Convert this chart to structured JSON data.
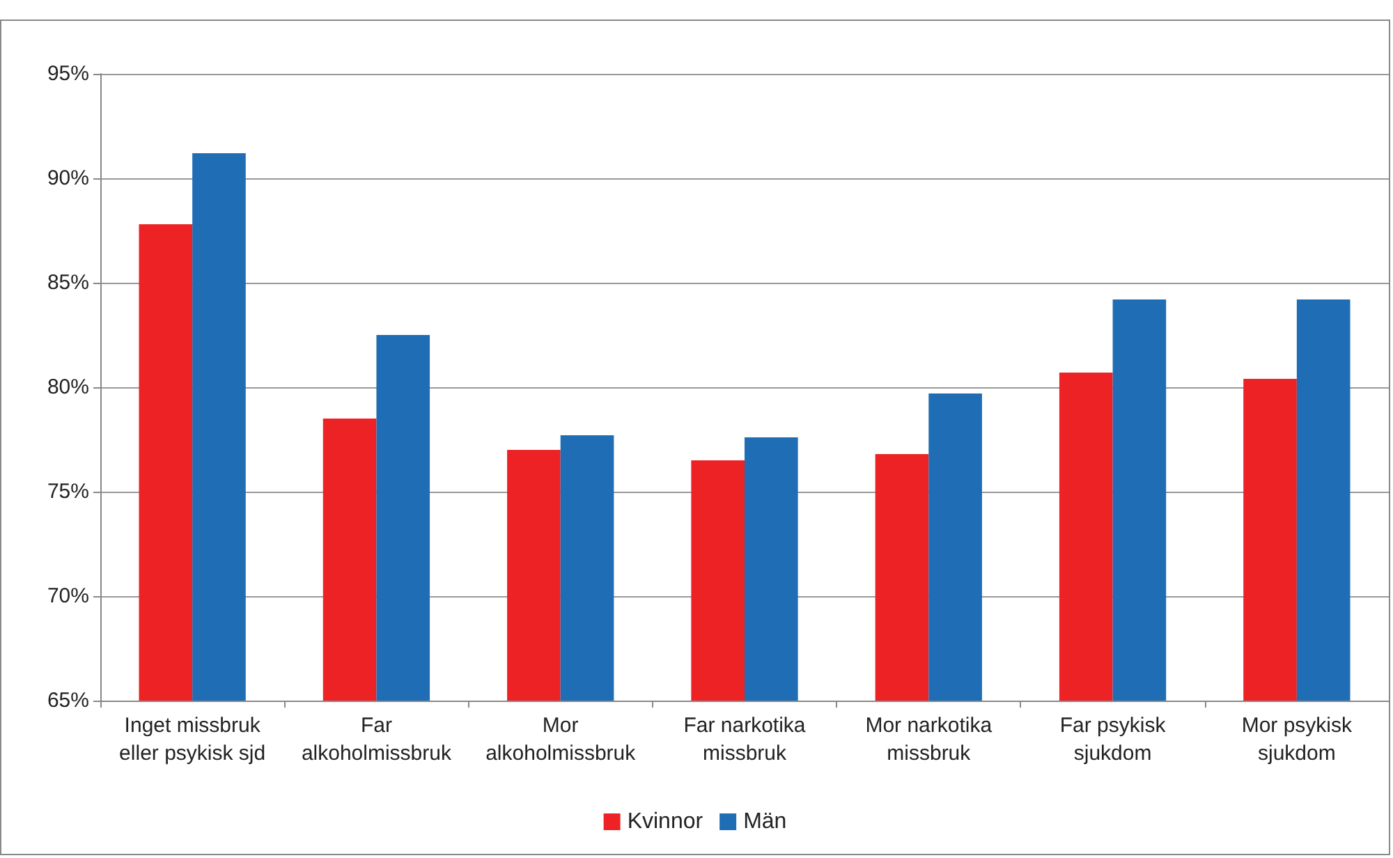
{
  "chart_data": {
    "type": "bar",
    "categories": [
      "Inget missbruk\neller psykisk sjd",
      "Far\nalkoholmissbruk",
      "Mor\nalkoholmissbruk",
      "Far narkotika\nmissbruk",
      "Mor narkotika\nmissbruk",
      "Far psykisk\nsjukdom",
      "Mor psykisk\nsjukdom"
    ],
    "series": [
      {
        "name": "Kvinnor",
        "color": "#ed2224",
        "values": [
          87.8,
          78.5,
          77.0,
          76.5,
          76.8,
          80.7,
          80.4
        ]
      },
      {
        "name": "Män",
        "color": "#1f6db5",
        "values": [
          91.2,
          82.5,
          77.7,
          77.6,
          79.7,
          84.2,
          84.2
        ]
      }
    ],
    "ylim": [
      65,
      95
    ],
    "yticks": [
      {
        "value": 65,
        "label": "65%"
      },
      {
        "value": 70,
        "label": "70%"
      },
      {
        "value": 75,
        "label": "75%"
      },
      {
        "value": 80,
        "label": "80%"
      },
      {
        "value": 85,
        "label": "85%"
      },
      {
        "value": 90,
        "label": "90%"
      },
      {
        "value": 95,
        "label": "95%"
      }
    ],
    "grid": "y",
    "legend": "bottom"
  }
}
